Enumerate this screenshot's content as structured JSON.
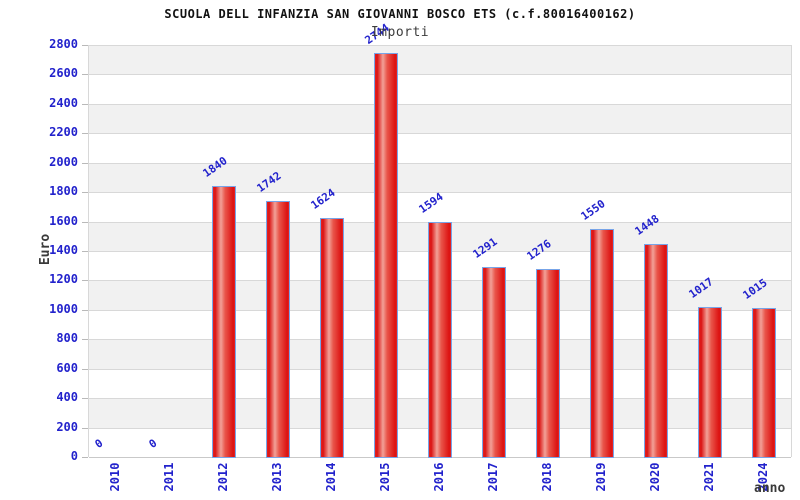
{
  "chart_data": {
    "type": "bar",
    "title": "SCUOLA DELL INFANZIA SAN GIOVANNI BOSCO ETS (c.f.80016400162)",
    "subtitle": "Importi",
    "xlabel": "anno",
    "ylabel": "Euro",
    "categories": [
      "2010",
      "2011",
      "2012",
      "2013",
      "2014",
      "2015",
      "2016",
      "2017",
      "2018",
      "2019",
      "2020",
      "2021",
      "2024"
    ],
    "values": [
      0,
      0,
      1840,
      1742,
      1624,
      2744,
      1594,
      1291,
      1276,
      1550,
      1448,
      1017,
      1015
    ],
    "ylim": [
      0,
      2800
    ],
    "ytick_step": 200,
    "grid": "horizontal",
    "band_fill": "alternating",
    "legend": "none",
    "colors": {
      "bar_edge": "#77a4e8",
      "bar_dark": "#dc1111",
      "bar_highlight": "#f2a198",
      "tick_label": "#2222cc",
      "band_gray": "#f1f1f1",
      "gridline": "#d8d8d8",
      "title": "#111111",
      "axis_title": "#3a3a3a"
    }
  }
}
